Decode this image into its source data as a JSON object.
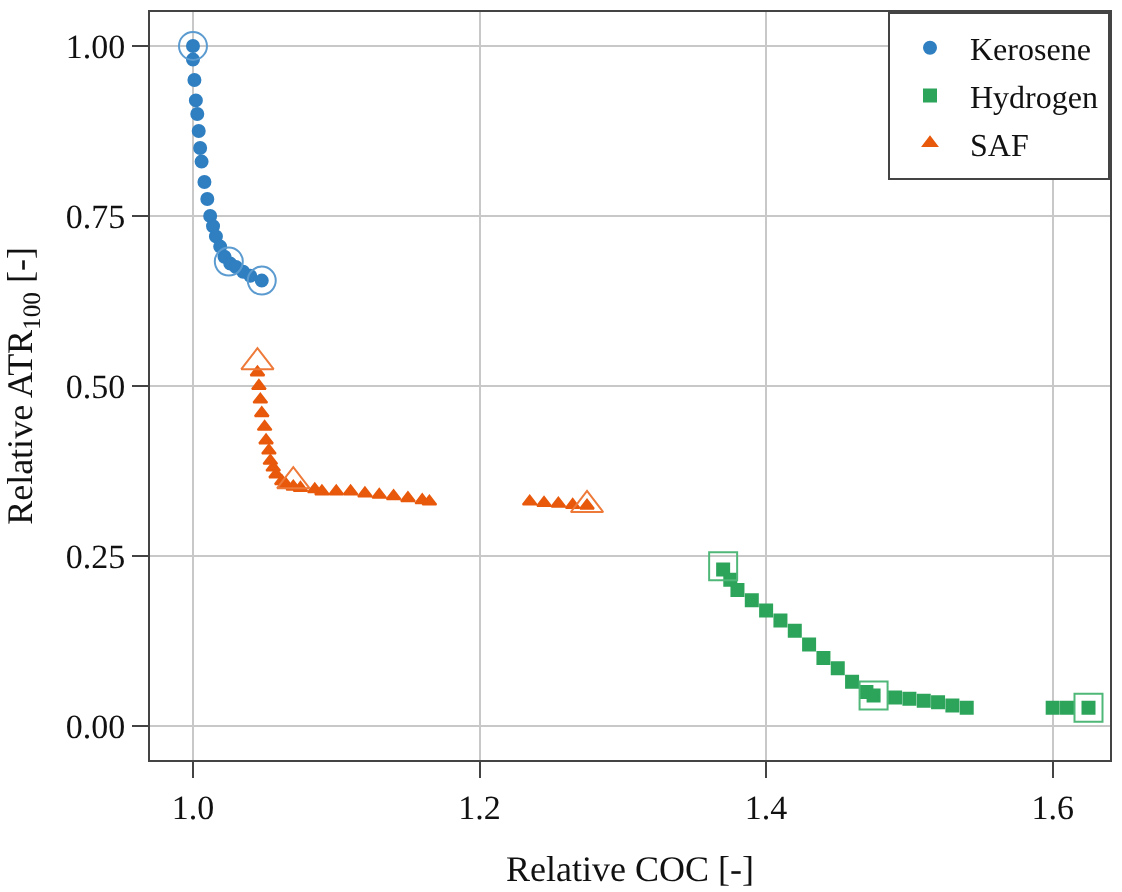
{
  "chart_data": {
    "type": "scatter",
    "xlabel": "Relative COC [-]",
    "ylabel": "Relative ATR$_{100}$ [-]",
    "xlim": [
      0.97,
      1.64
    ],
    "xticks": [
      {
        "value": 1.0,
        "label": "1.0"
      },
      {
        "value": 1.2,
        "label": "1.2"
      },
      {
        "value": 1.4,
        "label": "1.4"
      },
      {
        "value": 1.6,
        "label": "1.6"
      }
    ],
    "ylim": [
      -0.05,
      1.05
    ],
    "yticks": [
      {
        "value": 0,
        "label": "0.00"
      },
      {
        "value": 0.25,
        "label": "0.25"
      },
      {
        "value": 0.5,
        "label": "0.50"
      },
      {
        "value": 0.75,
        "label": "0.75"
      },
      {
        "value": 1.0,
        "label": "1.00"
      }
    ],
    "grid": true,
    "legend": "top right",
    "series": [
      {
        "name": "Kerosene",
        "color": "#2f7fc1",
        "marker": "circle",
        "x": [
          1.0,
          1.0,
          1.001,
          1.002,
          1.003,
          1.004,
          1.005,
          1.006,
          1.008,
          1.01,
          1.012,
          1.014,
          1.016,
          1.019,
          1.022,
          1.026,
          1.03,
          1.035,
          1.04,
          1.048
        ],
        "values": [
          1.0,
          0.98,
          0.95,
          0.92,
          0.9,
          0.875,
          0.85,
          0.83,
          0.8,
          0.775,
          0.75,
          0.735,
          0.72,
          0.705,
          0.69,
          0.68,
          0.675,
          0.668,
          0.662,
          0.655
        ]
      },
      {
        "name": "Hydrogen",
        "color": "#2ca45a",
        "marker": "square",
        "x": [
          1.37,
          1.375,
          1.38,
          1.39,
          1.4,
          1.41,
          1.42,
          1.43,
          1.44,
          1.45,
          1.46,
          1.47,
          1.475,
          1.49,
          1.5,
          1.51,
          1.52,
          1.53,
          1.54,
          1.6,
          1.61,
          1.625
        ],
        "values": [
          0.23,
          0.215,
          0.2,
          0.185,
          0.17,
          0.155,
          0.14,
          0.12,
          0.1,
          0.085,
          0.065,
          0.05,
          0.045,
          0.042,
          0.04,
          0.037,
          0.035,
          0.03,
          0.027,
          0.027,
          0.027,
          0.027
        ]
      },
      {
        "name": "SAF",
        "color": "#e8590c",
        "marker": "triangle",
        "x": [
          1.045,
          1.046,
          1.047,
          1.048,
          1.05,
          1.051,
          1.053,
          1.054,
          1.056,
          1.058,
          1.062,
          1.065,
          1.07,
          1.075,
          1.085,
          1.09,
          1.1,
          1.11,
          1.12,
          1.13,
          1.14,
          1.15,
          1.16,
          1.165,
          1.235,
          1.245,
          1.255,
          1.265,
          1.275
        ],
        "values": [
          0.52,
          0.5,
          0.48,
          0.46,
          0.44,
          0.42,
          0.405,
          0.39,
          0.38,
          0.37,
          0.36,
          0.355,
          0.352,
          0.35,
          0.348,
          0.345,
          0.345,
          0.345,
          0.342,
          0.34,
          0.338,
          0.335,
          0.332,
          0.33,
          0.33,
          0.328,
          0.327,
          0.325,
          0.324
        ]
      },
      {
        "color": "#5b9bd0",
        "marker": "circle",
        "x": [
          1.0,
          1.025,
          1.048
        ],
        "values": [
          1.0,
          0.683,
          0.655
        ]
      },
      {
        "color": "#ee7a3a",
        "marker": "triangle",
        "x": [
          1.045,
          1.07,
          1.275
        ],
        "values": [
          0.535,
          0.36,
          0.325
        ]
      },
      {
        "color": "#4fb878",
        "marker": "square",
        "x": [
          1.37,
          1.475,
          1.625
        ],
        "values": [
          0.235,
          0.045,
          0.027
        ]
      }
    ]
  }
}
